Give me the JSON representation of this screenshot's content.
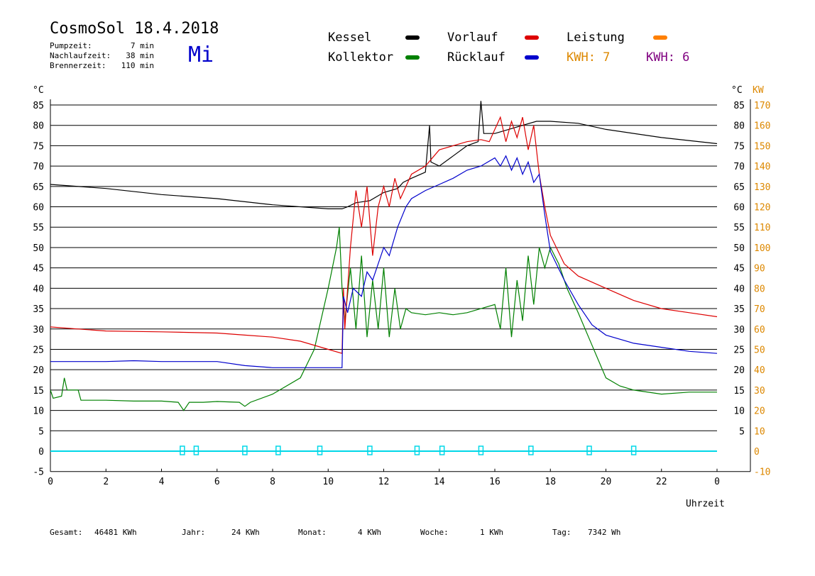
{
  "header": {
    "title": "CosmoSol 18.4.2018",
    "weekday": "Mi",
    "weekday_color": "#0000cc",
    "info": [
      {
        "label": "Pumpzeit:",
        "value": "7 min"
      },
      {
        "label": "Nachlaufzeit:",
        "value": "38 min"
      },
      {
        "label": "Brennerzeit:",
        "value": "110 min"
      }
    ]
  },
  "legend": {
    "kessel": {
      "label": "Kessel",
      "color": "#000000"
    },
    "kollektor": {
      "label": "Kollektor",
      "color": "#008000"
    },
    "vorlauf": {
      "label": "Vorlauf",
      "color": "#dd0000"
    },
    "ruecklauf": {
      "label": "Rücklauf",
      "color": "#0000cc"
    },
    "leistung": {
      "label": "Leistung",
      "color": "#ff8000"
    },
    "kwh1": {
      "label": "KWH: 7",
      "color": "#dd8800"
    },
    "kwh2": {
      "label": "KWH: 6",
      "color": "#800080"
    }
  },
  "axes": {
    "left_unit": "°C",
    "right_unit_c": "°C",
    "right_unit_kw": "KW",
    "x_label": "Uhrzeit"
  },
  "footer": [
    {
      "label": "Gesamt:",
      "value": "46481 KWh"
    },
    {
      "label": "Jahr:",
      "value": "24 KWh"
    },
    {
      "label": "Monat:",
      "value": "4 KWh"
    },
    {
      "label": "Woche:",
      "value": "1 KWh"
    },
    {
      "label": "Tag:",
      "value": "7342 Wh"
    }
  ],
  "chart_data": {
    "type": "line",
    "xlim": [
      0,
      24
    ],
    "ylim": [
      -5,
      85
    ],
    "x_ticks": [
      "0",
      "2",
      "4",
      "6",
      "8",
      "10",
      "12",
      "14",
      "16",
      "18",
      "20",
      "22",
      "0"
    ],
    "y_ticks_left": [
      "-5",
      "0",
      "5",
      "10",
      "15",
      "20",
      "25",
      "30",
      "35",
      "40",
      "45",
      "50",
      "55",
      "60",
      "65",
      "70",
      "75",
      "80",
      "85"
    ],
    "y_ticks_right_c": [
      "5",
      "10",
      "15",
      "20",
      "25",
      "30",
      "35",
      "40",
      "45",
      "50",
      "55",
      "60",
      "65",
      "70",
      "75",
      "80",
      "85"
    ],
    "y_ticks_right_kw": [
      "-10",
      "0",
      "10",
      "20",
      "30",
      "40",
      "50",
      "60",
      "70",
      "80",
      "90",
      "100",
      "110",
      "120",
      "130",
      "140",
      "150",
      "160",
      "170"
    ],
    "series": [
      {
        "key": "kessel",
        "color": "#000000",
        "points": [
          [
            0,
            65.5
          ],
          [
            2,
            64.5
          ],
          [
            4,
            63
          ],
          [
            6,
            62
          ],
          [
            8,
            60.5
          ],
          [
            10,
            59.5
          ],
          [
            10.5,
            59.5
          ],
          [
            10.7,
            60
          ],
          [
            11,
            61
          ],
          [
            11.5,
            61.5
          ],
          [
            12,
            63.5
          ],
          [
            12.5,
            64.5
          ],
          [
            12.7,
            66
          ],
          [
            13,
            67
          ],
          [
            13.5,
            68.5
          ],
          [
            13.65,
            80
          ],
          [
            13.7,
            71
          ],
          [
            14,
            70
          ],
          [
            14.5,
            72.5
          ],
          [
            15,
            75
          ],
          [
            15.4,
            76
          ],
          [
            15.5,
            86
          ],
          [
            15.6,
            78
          ],
          [
            16,
            78
          ],
          [
            16.5,
            79
          ],
          [
            17,
            80
          ],
          [
            17.5,
            81
          ],
          [
            18,
            81
          ],
          [
            19,
            80.5
          ],
          [
            20,
            79
          ],
          [
            22,
            77
          ],
          [
            24,
            75.5
          ]
        ]
      },
      {
        "key": "kollektor",
        "color": "#008000",
        "points": [
          [
            0,
            15
          ],
          [
            0.1,
            13
          ],
          [
            0.4,
            13.5
          ],
          [
            0.5,
            18
          ],
          [
            0.6,
            15
          ],
          [
            1,
            15
          ],
          [
            1.1,
            12.5
          ],
          [
            2,
            12.5
          ],
          [
            3,
            12.3
          ],
          [
            4,
            12.3
          ],
          [
            4.6,
            12
          ],
          [
            4.8,
            10
          ],
          [
            5,
            12
          ],
          [
            5.5,
            12
          ],
          [
            6,
            12.2
          ],
          [
            6.8,
            12
          ],
          [
            7,
            11
          ],
          [
            7.2,
            12
          ],
          [
            8,
            14
          ],
          [
            9,
            18
          ],
          [
            9.5,
            25
          ],
          [
            10,
            40
          ],
          [
            10.3,
            50
          ],
          [
            10.4,
            55
          ],
          [
            10.5,
            40
          ],
          [
            10.6,
            32
          ],
          [
            10.8,
            45
          ],
          [
            11,
            30
          ],
          [
            11.2,
            48
          ],
          [
            11.4,
            28
          ],
          [
            11.6,
            42
          ],
          [
            11.8,
            30
          ],
          [
            12,
            45
          ],
          [
            12.2,
            28
          ],
          [
            12.4,
            40
          ],
          [
            12.6,
            30
          ],
          [
            12.8,
            35
          ],
          [
            13,
            34
          ],
          [
            13.5,
            33.5
          ],
          [
            14,
            34
          ],
          [
            14.5,
            33.5
          ],
          [
            15,
            34
          ],
          [
            15.5,
            35
          ],
          [
            16,
            36
          ],
          [
            16.2,
            30
          ],
          [
            16.4,
            45
          ],
          [
            16.6,
            28
          ],
          [
            16.8,
            42
          ],
          [
            17,
            32
          ],
          [
            17.2,
            48
          ],
          [
            17.4,
            36
          ],
          [
            17.6,
            50
          ],
          [
            17.8,
            45
          ],
          [
            18,
            50
          ],
          [
            18.3,
            46
          ],
          [
            18.6,
            40
          ],
          [
            19,
            34
          ],
          [
            19.5,
            26
          ],
          [
            20,
            18
          ],
          [
            20.5,
            16
          ],
          [
            21,
            15
          ],
          [
            22,
            14
          ],
          [
            23,
            14.5
          ],
          [
            24,
            14.5
          ]
        ]
      },
      {
        "key": "vorlauf",
        "color": "#dd0000",
        "points": [
          [
            0,
            30.5
          ],
          [
            1,
            30
          ],
          [
            2,
            29.5
          ],
          [
            4,
            29.3
          ],
          [
            6,
            29
          ],
          [
            7,
            28.5
          ],
          [
            8,
            28
          ],
          [
            9,
            27
          ],
          [
            10,
            25
          ],
          [
            10.5,
            24
          ],
          [
            10.55,
            40
          ],
          [
            10.6,
            30
          ],
          [
            10.8,
            50
          ],
          [
            11,
            64
          ],
          [
            11.2,
            55
          ],
          [
            11.4,
            65
          ],
          [
            11.6,
            48
          ],
          [
            11.8,
            60
          ],
          [
            12,
            65
          ],
          [
            12.2,
            60
          ],
          [
            12.4,
            67
          ],
          [
            12.6,
            62
          ],
          [
            12.8,
            65
          ],
          [
            13,
            68
          ],
          [
            13.5,
            70
          ],
          [
            14,
            74
          ],
          [
            14.5,
            75
          ],
          [
            15,
            76
          ],
          [
            15.5,
            76.5
          ],
          [
            15.8,
            76
          ],
          [
            16,
            79
          ],
          [
            16.2,
            82
          ],
          [
            16.4,
            76
          ],
          [
            16.6,
            81
          ],
          [
            16.8,
            77
          ],
          [
            17,
            82
          ],
          [
            17.2,
            74
          ],
          [
            17.4,
            80
          ],
          [
            17.6,
            68
          ],
          [
            17.8,
            60
          ],
          [
            18,
            53
          ],
          [
            18.5,
            46
          ],
          [
            19,
            43
          ],
          [
            20,
            40
          ],
          [
            21,
            37
          ],
          [
            22,
            35
          ],
          [
            23,
            34
          ],
          [
            24,
            33
          ]
        ]
      },
      {
        "key": "ruecklauf",
        "color": "#0000cc",
        "points": [
          [
            0,
            22
          ],
          [
            1,
            22
          ],
          [
            2,
            22
          ],
          [
            3,
            22.2
          ],
          [
            4,
            22
          ],
          [
            6,
            22
          ],
          [
            7,
            21
          ],
          [
            8,
            20.5
          ],
          [
            9,
            20.5
          ],
          [
            10,
            20.5
          ],
          [
            10.5,
            20.5
          ],
          [
            10.55,
            38
          ],
          [
            10.7,
            34
          ],
          [
            10.9,
            40
          ],
          [
            11.2,
            38
          ],
          [
            11.4,
            44
          ],
          [
            11.6,
            42
          ],
          [
            12,
            50
          ],
          [
            12.2,
            48
          ],
          [
            12.5,
            55
          ],
          [
            12.8,
            60
          ],
          [
            13,
            62
          ],
          [
            13.5,
            64
          ],
          [
            14,
            65.5
          ],
          [
            14.5,
            67
          ],
          [
            15,
            69
          ],
          [
            15.5,
            70
          ],
          [
            16,
            72
          ],
          [
            16.2,
            70
          ],
          [
            16.4,
            72.5
          ],
          [
            16.6,
            69
          ],
          [
            16.8,
            72
          ],
          [
            17,
            68
          ],
          [
            17.2,
            71
          ],
          [
            17.4,
            66
          ],
          [
            17.6,
            68
          ],
          [
            17.8,
            58
          ],
          [
            18,
            49
          ],
          [
            18.5,
            42
          ],
          [
            19,
            36
          ],
          [
            19.5,
            31
          ],
          [
            20,
            28.5
          ],
          [
            21,
            26.5
          ],
          [
            22,
            25.5
          ],
          [
            23,
            24.5
          ],
          [
            24,
            24
          ]
        ]
      }
    ],
    "pump_markers": [
      4.75,
      5.25,
      7,
      8.2,
      9.7,
      11.5,
      13.2,
      14.1,
      15.5,
      17.3,
      19.4,
      21
    ]
  }
}
